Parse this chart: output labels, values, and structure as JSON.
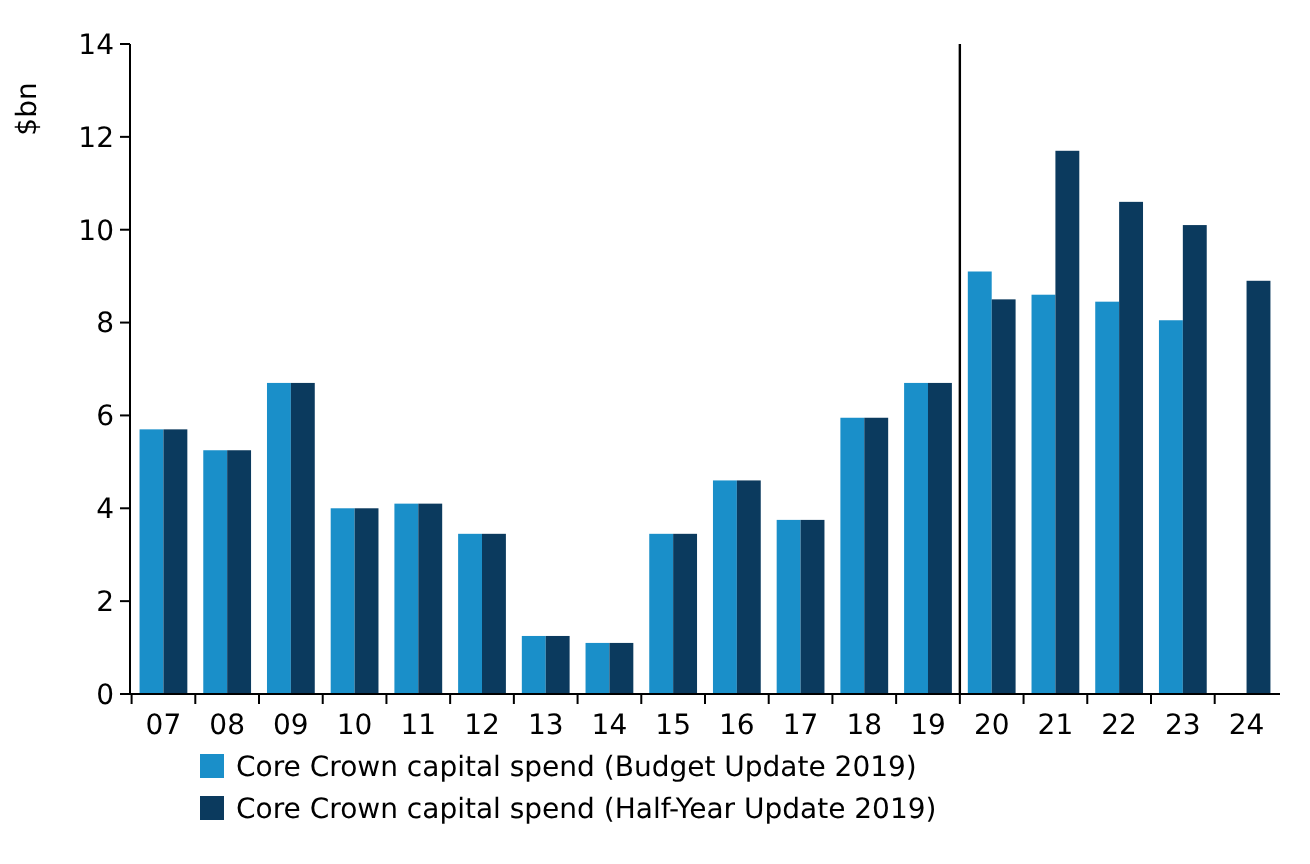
{
  "chart_data": {
    "type": "bar",
    "ylabel": "$bn",
    "categories": [
      "07",
      "08",
      "09",
      "10",
      "11",
      "12",
      "13",
      "14",
      "15",
      "16",
      "17",
      "18",
      "19",
      "20",
      "21",
      "22",
      "23",
      "24"
    ],
    "series": [
      {
        "name": "Core Crown capital spend (Budget Update 2019)",
        "color": "#1a8fc9",
        "values": [
          5.7,
          5.25,
          6.7,
          4.0,
          4.1,
          3.45,
          1.25,
          1.1,
          3.45,
          4.6,
          3.75,
          5.95,
          6.7,
          9.1,
          8.6,
          8.45,
          8.05,
          null
        ]
      },
      {
        "name": "Core Crown capital spend (Half-Year Update 2019)",
        "color": "#0b3a5e",
        "values": [
          5.7,
          5.25,
          6.7,
          4.0,
          4.1,
          3.45,
          1.25,
          1.1,
          3.45,
          4.6,
          3.75,
          5.95,
          6.7,
          8.5,
          11.7,
          10.6,
          10.1,
          8.9
        ]
      }
    ],
    "ylim": [
      0,
      14
    ],
    "yticks": [
      0,
      2,
      4,
      6,
      8,
      10,
      12,
      14
    ],
    "legend": "bottom",
    "grid": false
  }
}
